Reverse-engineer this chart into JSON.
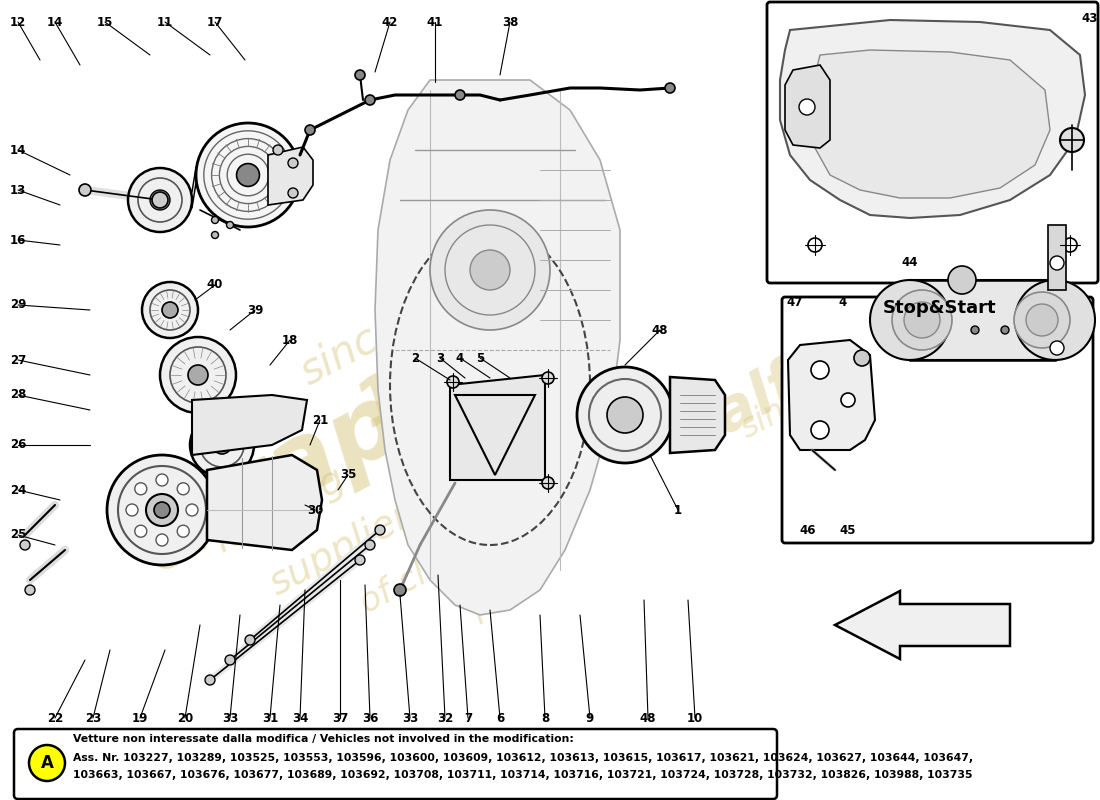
{
  "bg_color": "#ffffff",
  "watermark_color": "#d4c070",
  "note_box": {
    "label_circle_color": "#ffff00",
    "label_circle_text": "A",
    "line1": "Vetture non interessate dalla modifica / Vehicles not involved in the modification:",
    "line2": "Ass. Nr. 103227, 103289, 103525, 103553, 103596, 103600, 103609, 103612, 103613, 103615, 103617, 103621, 103624, 103627, 103644, 103647,",
    "line3": "103663, 103667, 103676, 103677, 103689, 103692, 103708, 103711, 103714, 103716, 103721, 103724, 103728, 103732, 103826, 103988, 103735"
  },
  "stop_start_label": "Stop&Start"
}
